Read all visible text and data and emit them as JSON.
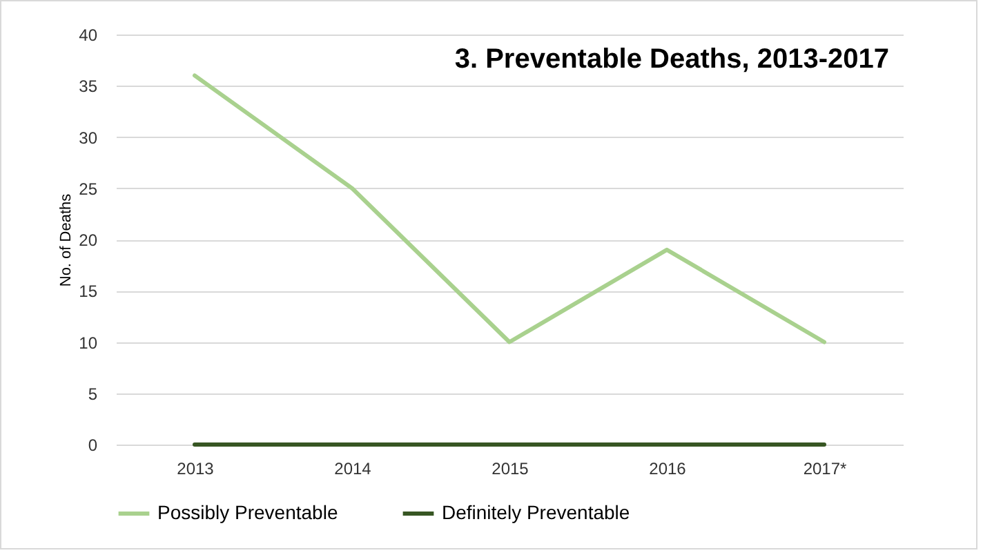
{
  "chart_data": {
    "type": "line",
    "title": "3. Preventable Deaths, 2013-2017",
    "ylabel": "No. of Deaths",
    "categories": [
      "2013",
      "2014",
      "2015",
      "2016",
      "2017*"
    ],
    "series": [
      {
        "name": "Possibly Preventable",
        "color": "#a9d18e",
        "values": [
          36,
          25,
          10,
          19,
          10
        ]
      },
      {
        "name": "Definitely Preventable",
        "color": "#375623",
        "values": [
          0,
          0,
          0,
          0,
          0
        ]
      }
    ],
    "ylim": [
      0,
      40
    ],
    "yticks": [
      0,
      5,
      10,
      15,
      20,
      25,
      30,
      35,
      40
    ],
    "grid": "y",
    "legend": "bottom",
    "marker": "none",
    "line_style": "solid"
  }
}
